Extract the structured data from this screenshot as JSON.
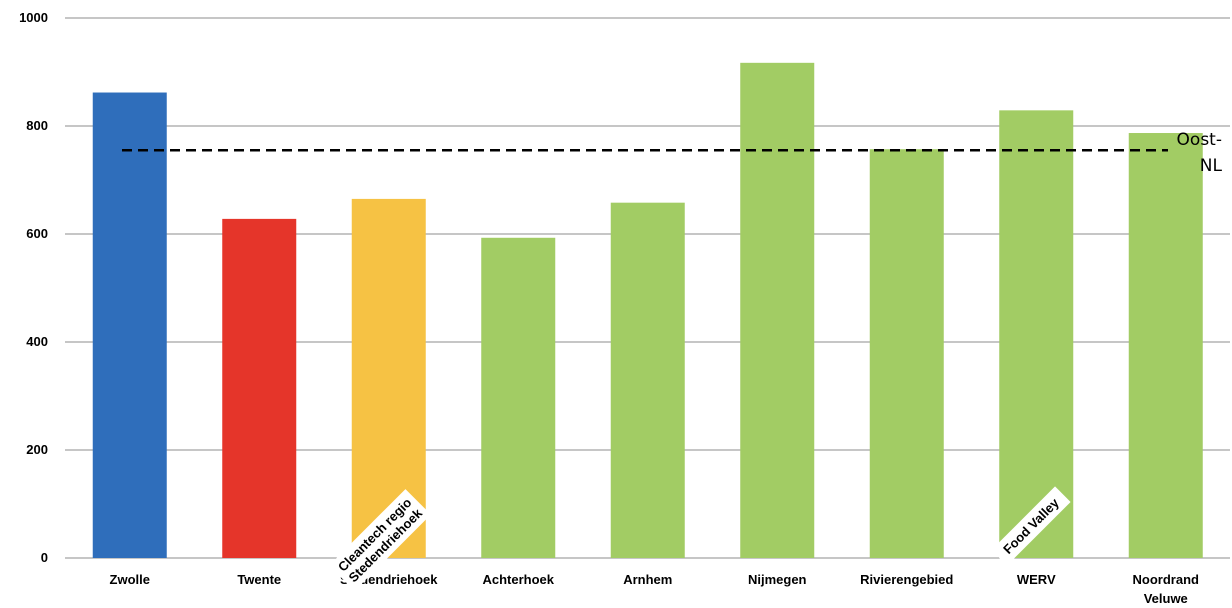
{
  "chart_data": {
    "type": "bar",
    "categories": [
      "Zwolle",
      "Twente",
      "Stedendriehoek",
      "Achterhoek",
      "Arnhem",
      "Nijmegen",
      "Rivierengebied",
      "WERV",
      "Noordrand Veluwe"
    ],
    "category_lines": [
      [
        "Zwolle"
      ],
      [
        "Twente"
      ],
      [
        "Stedendriehoek"
      ],
      [
        "Achterhoek"
      ],
      [
        "Arnhem"
      ],
      [
        "Nijmegen"
      ],
      [
        "Rivierengebied"
      ],
      [
        "WERV"
      ],
      [
        "Noordrand",
        "Veluwe"
      ]
    ],
    "values": [
      862,
      628,
      665,
      593,
      658,
      917,
      757,
      829,
      787
    ],
    "colors": [
      "#2f6ebb",
      "#e5352a",
      "#f6c244",
      "#a2cc64",
      "#a2cc64",
      "#a2cc64",
      "#a2cc64",
      "#a2cc64",
      "#a2cc64"
    ],
    "ylim": [
      0,
      1000
    ],
    "yticks": [
      0,
      200,
      400,
      600,
      800,
      1000
    ],
    "grid": true,
    "reference_line": {
      "value": 755,
      "style": "dashed",
      "color": "#000000",
      "label_lines": [
        "Oost-",
        "NL"
      ]
    },
    "annotations": [
      {
        "lines": [
          "Cleantech regio",
          "Stedendriehoek"
        ],
        "category": "Stedendriehoek"
      },
      {
        "lines": [
          "Food Valley"
        ],
        "category": "WERV"
      }
    ]
  }
}
